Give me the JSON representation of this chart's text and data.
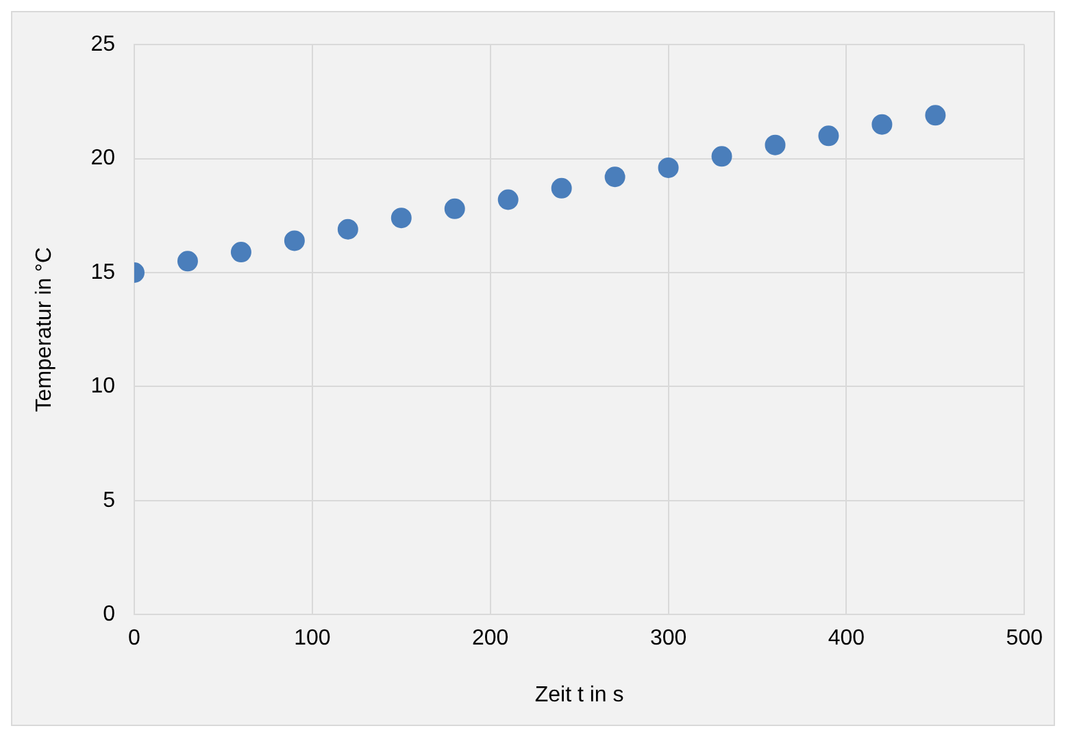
{
  "chart_data": {
    "type": "scatter",
    "xlabel": "Zeit t in s",
    "ylabel": "Temperatur in °C",
    "x": [
      0,
      30,
      60,
      90,
      120,
      150,
      180,
      210,
      240,
      270,
      300,
      330,
      360,
      390,
      420,
      450
    ],
    "series": [
      {
        "color": "#4a7ebb",
        "values": [
          15.0,
          15.5,
          15.9,
          16.4,
          16.9,
          17.4,
          17.8,
          18.2,
          18.7,
          19.2,
          19.6,
          20.1,
          20.6,
          21.0,
          21.5,
          21.9
        ]
      }
    ],
    "xlim": [
      0,
      500
    ],
    "xticks": [
      0,
      100,
      200,
      300,
      400,
      500
    ],
    "ylim": [
      0,
      25
    ],
    "yticks": [
      0,
      5,
      10,
      15,
      20,
      25
    ],
    "grid": true,
    "legend": false,
    "marker": "circle"
  }
}
